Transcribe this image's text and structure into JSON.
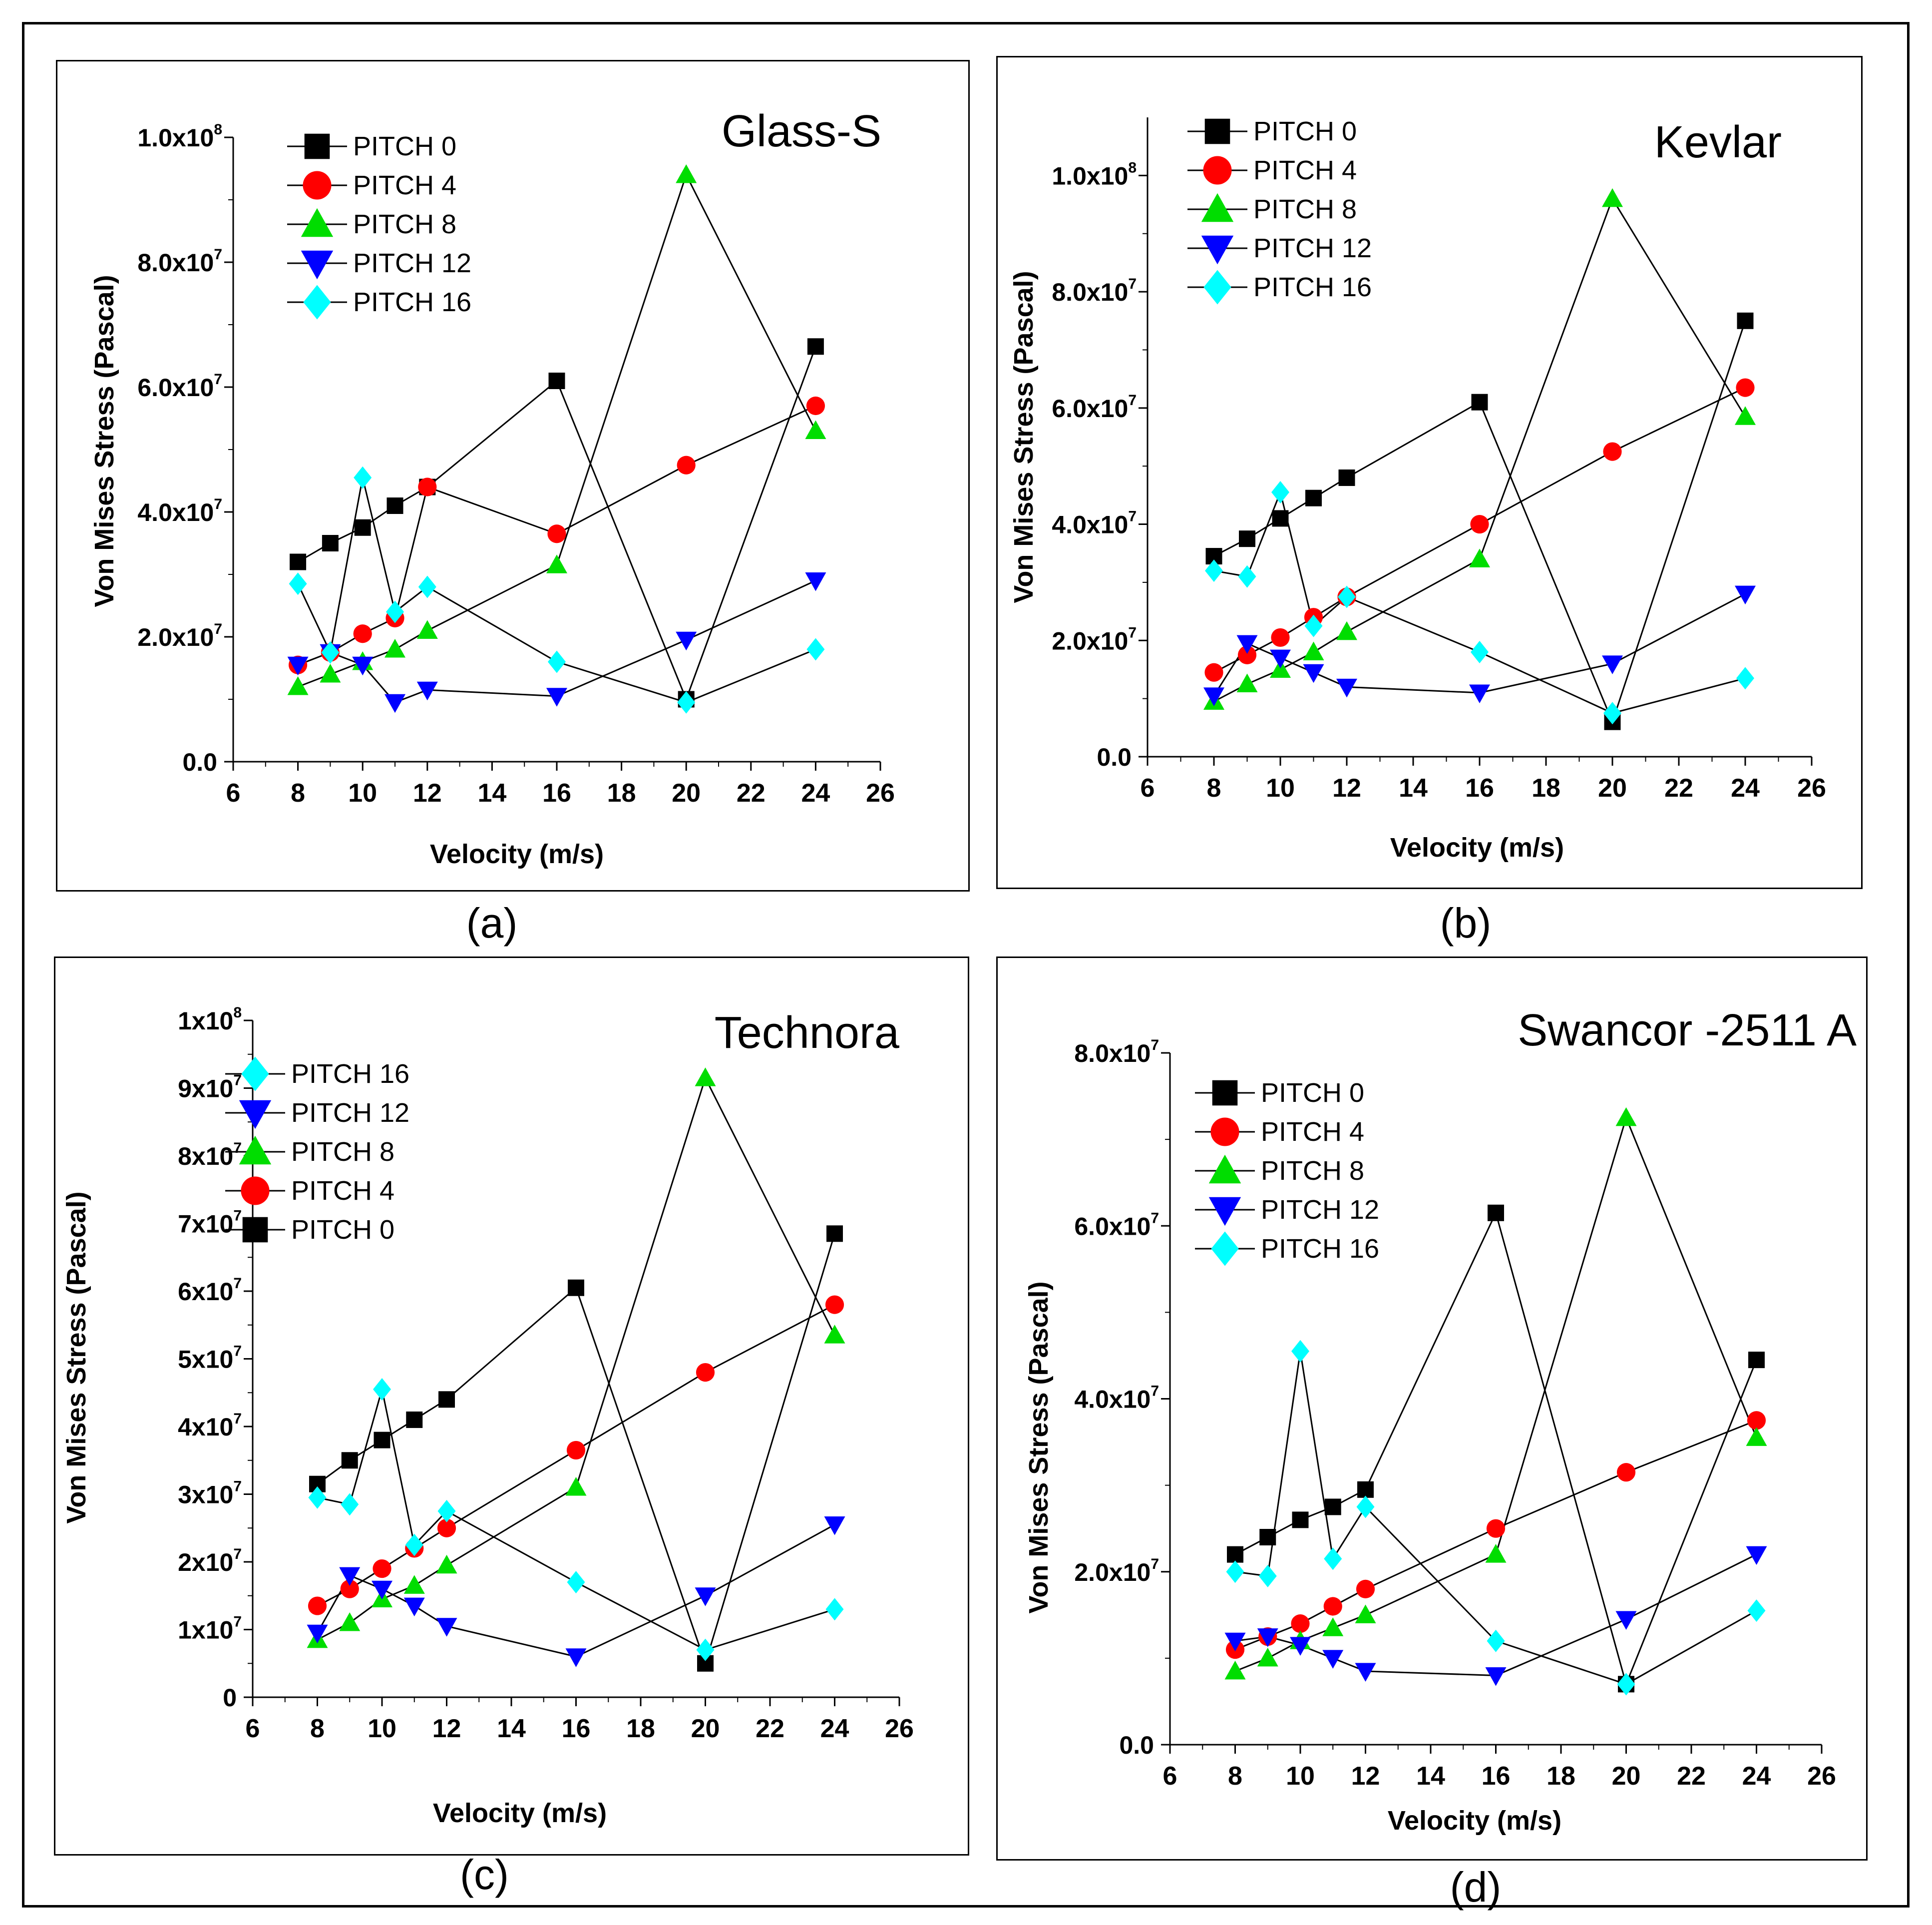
{
  "colors": {
    "PITCH 0": "#000000",
    "PITCH 4": "#ff0000",
    "PITCH 8": "#00dd00",
    "PITCH 12": "#0000ff",
    "PITCH 16": "#00ffff",
    "line": "#000000"
  },
  "chart_data": [
    {
      "type": "line",
      "panel_caption": "(a)",
      "title": "Glass-S",
      "xlabel": "Velocity (m/s)",
      "ylabel": "Von Mises Stress (Pascal)",
      "xlim": [
        6,
        26
      ],
      "xticks": [
        6,
        8,
        10,
        12,
        14,
        16,
        18,
        20,
        22,
        24,
        26
      ],
      "ylim": [
        0,
        100000000
      ],
      "yticks": [
        {
          "v": 0,
          "m": "0.0",
          "e": ""
        },
        {
          "v": 20000000,
          "m": "2.0x10",
          "e": "7"
        },
        {
          "v": 40000000,
          "m": "4.0x10",
          "e": "7"
        },
        {
          "v": 60000000,
          "m": "6.0x10",
          "e": "7"
        },
        {
          "v": 80000000,
          "m": "8.0x10",
          "e": "7"
        },
        {
          "v": 100000000,
          "m": "1.0x10",
          "e": "8"
        }
      ],
      "legend": [
        "PITCH 0",
        "PITCH 4",
        "PITCH 8",
        "PITCH 12",
        "PITCH 16"
      ],
      "series": [
        {
          "name": "PITCH 0",
          "marker": "square",
          "x": [
            8,
            9,
            10,
            11,
            12,
            16,
            20,
            24
          ],
          "y": [
            32000000,
            35000000,
            37500000,
            41000000,
            44000000,
            61000000,
            10000000,
            66500000
          ]
        },
        {
          "name": "PITCH 4",
          "marker": "circle",
          "x": [
            8,
            9,
            10,
            11,
            12,
            16,
            20,
            24
          ],
          "y": [
            15500000,
            17500000,
            20500000,
            23000000,
            44000000,
            36500000,
            47500000,
            57000000
          ]
        },
        {
          "name": "PITCH 8",
          "marker": "triangle-up",
          "x": [
            8,
            9,
            10,
            11,
            12,
            16,
            20,
            24
          ],
          "y": [
            12000000,
            14000000,
            16000000,
            18000000,
            21000000,
            31500000,
            94000000,
            53000000
          ]
        },
        {
          "name": "PITCH 12",
          "marker": "triangle-down",
          "x": [
            8,
            9,
            10,
            11,
            12,
            16,
            20,
            24
          ],
          "y": [
            15500000,
            17500000,
            15500000,
            9500000,
            11500000,
            10500000,
            19500000,
            29000000
          ]
        },
        {
          "name": "PITCH 16",
          "marker": "diamond",
          "x": [
            8,
            9,
            10,
            11,
            12,
            16,
            20,
            24
          ],
          "y": [
            28500000,
            17500000,
            45500000,
            24000000,
            28000000,
            16000000,
            9500000,
            18000000
          ]
        }
      ]
    },
    {
      "type": "line",
      "panel_caption": "(b)",
      "title": "Kevlar",
      "xlabel": "Velocity (m/s)",
      "ylabel": "Von Mises Stress (Pascal)",
      "xlim": [
        6,
        26
      ],
      "xticks": [
        6,
        8,
        10,
        12,
        14,
        16,
        18,
        20,
        22,
        24,
        26
      ],
      "ylim": [
        0,
        110000000
      ],
      "yticks": [
        {
          "v": 0,
          "m": "0.0",
          "e": ""
        },
        {
          "v": 20000000,
          "m": "2.0x10",
          "e": "7"
        },
        {
          "v": 40000000,
          "m": "4.0x10",
          "e": "7"
        },
        {
          "v": 60000000,
          "m": "6.0x10",
          "e": "7"
        },
        {
          "v": 80000000,
          "m": "8.0x10",
          "e": "7"
        },
        {
          "v": 100000000,
          "m": "1.0x10",
          "e": "8"
        }
      ],
      "legend": [
        "PITCH 0",
        "PITCH 4",
        "PITCH 8",
        "PITCH 12",
        "PITCH 16"
      ],
      "series": [
        {
          "name": "PITCH 0",
          "marker": "square",
          "x": [
            8,
            9,
            10,
            11,
            12,
            16,
            20,
            24
          ],
          "y": [
            34500000,
            37500000,
            41000000,
            44500000,
            48000000,
            61000000,
            6000000,
            75000000
          ]
        },
        {
          "name": "PITCH 4",
          "marker": "circle",
          "x": [
            8,
            9,
            10,
            11,
            12,
            16,
            20,
            24
          ],
          "y": [
            14500000,
            17500000,
            20500000,
            24000000,
            27500000,
            40000000,
            52500000,
            63500000
          ]
        },
        {
          "name": "PITCH 8",
          "marker": "triangle-up",
          "x": [
            8,
            9,
            10,
            11,
            12,
            16,
            20,
            24
          ],
          "y": [
            9500000,
            12500000,
            15000000,
            18000000,
            21500000,
            34000000,
            96000000,
            58500000
          ]
        },
        {
          "name": "PITCH 12",
          "marker": "triangle-down",
          "x": [
            8,
            9,
            10,
            11,
            12,
            16,
            20,
            24
          ],
          "y": [
            10500000,
            19500000,
            17000000,
            14500000,
            12000000,
            11000000,
            16000000,
            28000000
          ]
        },
        {
          "name": "PITCH 16",
          "marker": "diamond",
          "x": [
            8,
            9,
            10,
            11,
            12,
            16,
            20,
            24
          ],
          "y": [
            32000000,
            31000000,
            45500000,
            22500000,
            27500000,
            18000000,
            7500000,
            13500000
          ]
        }
      ]
    },
    {
      "type": "line",
      "panel_caption": "(c)",
      "title": "Technora",
      "xlabel": "Velocity (m/s)",
      "ylabel": "Von Mises Stress (Pascal)",
      "xlim": [
        6,
        26
      ],
      "xticks": [
        6,
        8,
        10,
        12,
        14,
        16,
        18,
        20,
        22,
        24,
        26
      ],
      "ylim": [
        0,
        100000000
      ],
      "yticks": [
        {
          "v": 0,
          "m": "0",
          "e": ""
        },
        {
          "v": 10000000,
          "m": "1x10",
          "e": "7"
        },
        {
          "v": 20000000,
          "m": "2x10",
          "e": "7"
        },
        {
          "v": 30000000,
          "m": "3x10",
          "e": "7"
        },
        {
          "v": 40000000,
          "m": "4x10",
          "e": "7"
        },
        {
          "v": 50000000,
          "m": "5x10",
          "e": "7"
        },
        {
          "v": 60000000,
          "m": "6x10",
          "e": "7"
        },
        {
          "v": 70000000,
          "m": "7x10",
          "e": "7"
        },
        {
          "v": 80000000,
          "m": "8x10",
          "e": "7"
        },
        {
          "v": 90000000,
          "m": "9x10",
          "e": "7"
        },
        {
          "v": 100000000,
          "m": "1x10",
          "e": "8"
        }
      ],
      "legend": [
        "PITCH 16",
        "PITCH 12",
        "PITCH 8",
        "PITCH 4",
        "PITCH 0"
      ],
      "series": [
        {
          "name": "PITCH 0",
          "marker": "square",
          "x": [
            8,
            9,
            10,
            11,
            12,
            16,
            20,
            24
          ],
          "y": [
            31500000,
            35000000,
            38000000,
            41000000,
            44000000,
            60500000,
            5000000,
            68500000
          ]
        },
        {
          "name": "PITCH 4",
          "marker": "circle",
          "x": [
            8,
            9,
            10,
            11,
            12,
            16,
            20,
            24
          ],
          "y": [
            13500000,
            16000000,
            19000000,
            22000000,
            25000000,
            36500000,
            48000000,
            58000000
          ]
        },
        {
          "name": "PITCH 8",
          "marker": "triangle-up",
          "x": [
            8,
            9,
            10,
            11,
            12,
            16,
            20,
            24
          ],
          "y": [
            8500000,
            11000000,
            14500000,
            16500000,
            19500000,
            31000000,
            91500000,
            53500000
          ]
        },
        {
          "name": "PITCH 12",
          "marker": "triangle-down",
          "x": [
            8,
            9,
            10,
            11,
            12,
            16,
            20,
            24
          ],
          "y": [
            9500000,
            18000000,
            16000000,
            13500000,
            10500000,
            6000000,
            15000000,
            25500000
          ]
        },
        {
          "name": "PITCH 16",
          "marker": "diamond",
          "x": [
            8,
            9,
            10,
            11,
            12,
            16,
            20,
            24
          ],
          "y": [
            29500000,
            28500000,
            45500000,
            22500000,
            27500000,
            17000000,
            7000000,
            13000000
          ]
        }
      ]
    },
    {
      "type": "line",
      "panel_caption": "(d)",
      "title": "Swancor -2511 A",
      "xlabel": "Velocity (m/s)",
      "ylabel": "Von Mises Stress (Pascal)",
      "xlim": [
        6,
        26
      ],
      "xticks": [
        6,
        8,
        10,
        12,
        14,
        16,
        18,
        20,
        22,
        24,
        26
      ],
      "ylim": [
        0,
        80000000
      ],
      "yticks": [
        {
          "v": 0,
          "m": "0.0",
          "e": ""
        },
        {
          "v": 20000000,
          "m": "2.0x10",
          "e": "7"
        },
        {
          "v": 40000000,
          "m": "4.0x10",
          "e": "7"
        },
        {
          "v": 60000000,
          "m": "6.0x10",
          "e": "7"
        },
        {
          "v": 80000000,
          "m": "8.0x10",
          "e": "7"
        }
      ],
      "legend": [
        "PITCH 0",
        "PITCH 4",
        "PITCH 8",
        "PITCH 12",
        "PITCH 16"
      ],
      "series": [
        {
          "name": "PITCH 0",
          "marker": "square",
          "x": [
            8,
            9,
            10,
            11,
            12,
            16,
            20,
            24
          ],
          "y": [
            22000000,
            24000000,
            26000000,
            27500000,
            29500000,
            61500000,
            7000000,
            44500000
          ]
        },
        {
          "name": "PITCH 4",
          "marker": "circle",
          "x": [
            8,
            9,
            10,
            11,
            12,
            16,
            20,
            24
          ],
          "y": [
            11000000,
            12500000,
            14000000,
            16000000,
            18000000,
            25000000,
            31500000,
            37500000
          ]
        },
        {
          "name": "PITCH 8",
          "marker": "triangle-up",
          "x": [
            8,
            9,
            10,
            11,
            12,
            16,
            20,
            24
          ],
          "y": [
            8500000,
            10000000,
            12000000,
            13500000,
            15000000,
            22000000,
            72500000,
            35500000
          ]
        },
        {
          "name": "PITCH 12",
          "marker": "triangle-down",
          "x": [
            8,
            9,
            10,
            11,
            12,
            16,
            20,
            24
          ],
          "y": [
            12000000,
            12500000,
            11500000,
            10000000,
            8500000,
            8000000,
            14500000,
            22000000
          ]
        },
        {
          "name": "PITCH 16",
          "marker": "diamond",
          "x": [
            8,
            9,
            10,
            11,
            12,
            16,
            20,
            24
          ],
          "y": [
            20000000,
            19500000,
            45500000,
            21500000,
            27500000,
            12000000,
            7000000,
            15500000
          ]
        }
      ]
    }
  ]
}
